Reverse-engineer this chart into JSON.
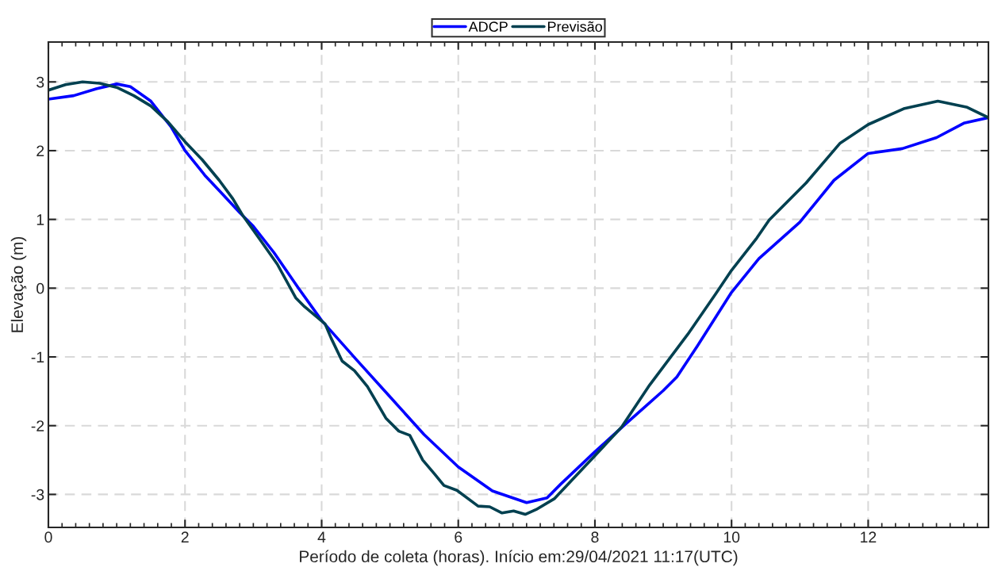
{
  "chart_data": {
    "type": "line",
    "xlabel": "Período de coleta (horas). Início em:29/04/2021 11:17(UTC)",
    "ylabel": "Elevação (m)",
    "xlim": [
      0,
      13.76
    ],
    "ylim": [
      -3.48,
      3.58
    ],
    "xticks": [
      0,
      2,
      4,
      6,
      8,
      10,
      12
    ],
    "yticks": [
      -3,
      -2,
      -1,
      0,
      1,
      2,
      3
    ],
    "grid": true,
    "legend": "top",
    "line_style": "solid",
    "marker": "none",
    "series": [
      {
        "name": "ADCP",
        "color": "#0000ff",
        "x": [
          0,
          0.37,
          0.7,
          1.0,
          1.2,
          1.5,
          1.8,
          2.0,
          2.3,
          2.5,
          2.8,
          3.0,
          3.3,
          3.66,
          4.0,
          4.5,
          5.0,
          5.5,
          6.0,
          6.5,
          7.0,
          7.3,
          7.5,
          8.0,
          8.4,
          9.0,
          9.2,
          9.5,
          10.0,
          10.4,
          11.0,
          11.5,
          12.0,
          12.5,
          13.0,
          13.4,
          13.76
        ],
        "values": [
          2.75,
          2.8,
          2.9,
          2.97,
          2.93,
          2.72,
          2.34,
          2.0,
          1.63,
          1.42,
          1.1,
          0.9,
          0.52,
          0.0,
          -0.47,
          -1.03,
          -1.58,
          -2.13,
          -2.6,
          -2.95,
          -3.12,
          -3.05,
          -2.85,
          -2.38,
          -2.02,
          -1.49,
          -1.29,
          -0.84,
          -0.06,
          0.43,
          0.96,
          1.57,
          1.96,
          2.03,
          2.19,
          2.4,
          2.48
        ]
      },
      {
        "name": "Previsão",
        "color": "#004050",
        "x": [
          0,
          0.25,
          0.5,
          0.75,
          1.0,
          1.25,
          1.5,
          1.75,
          2.0,
          2.25,
          2.5,
          2.7,
          2.85,
          3.08,
          3.35,
          3.62,
          3.75,
          4.05,
          4.14,
          4.3,
          4.48,
          4.67,
          4.94,
          5.13,
          5.29,
          5.48,
          5.65,
          5.79,
          5.98,
          6.29,
          6.46,
          6.64,
          6.81,
          6.98,
          7.14,
          7.41,
          7.96,
          8.39,
          8.8,
          9.36,
          9.77,
          10.0,
          10.37,
          10.55,
          11.09,
          11.59,
          12.0,
          12.52,
          13.02,
          13.45,
          13.76
        ],
        "values": [
          2.88,
          2.96,
          3.0,
          2.98,
          2.92,
          2.8,
          2.65,
          2.42,
          2.13,
          1.87,
          1.57,
          1.3,
          1.05,
          0.73,
          0.35,
          -0.14,
          -0.27,
          -0.52,
          -0.73,
          -1.06,
          -1.2,
          -1.43,
          -1.89,
          -2.08,
          -2.14,
          -2.5,
          -2.7,
          -2.87,
          -2.94,
          -3.17,
          -3.18,
          -3.27,
          -3.24,
          -3.29,
          -3.22,
          -3.06,
          -2.48,
          -2.02,
          -1.41,
          -0.67,
          -0.08,
          0.26,
          0.73,
          0.99,
          1.53,
          2.11,
          2.38,
          2.61,
          2.72,
          2.63,
          2.48
        ]
      }
    ]
  }
}
